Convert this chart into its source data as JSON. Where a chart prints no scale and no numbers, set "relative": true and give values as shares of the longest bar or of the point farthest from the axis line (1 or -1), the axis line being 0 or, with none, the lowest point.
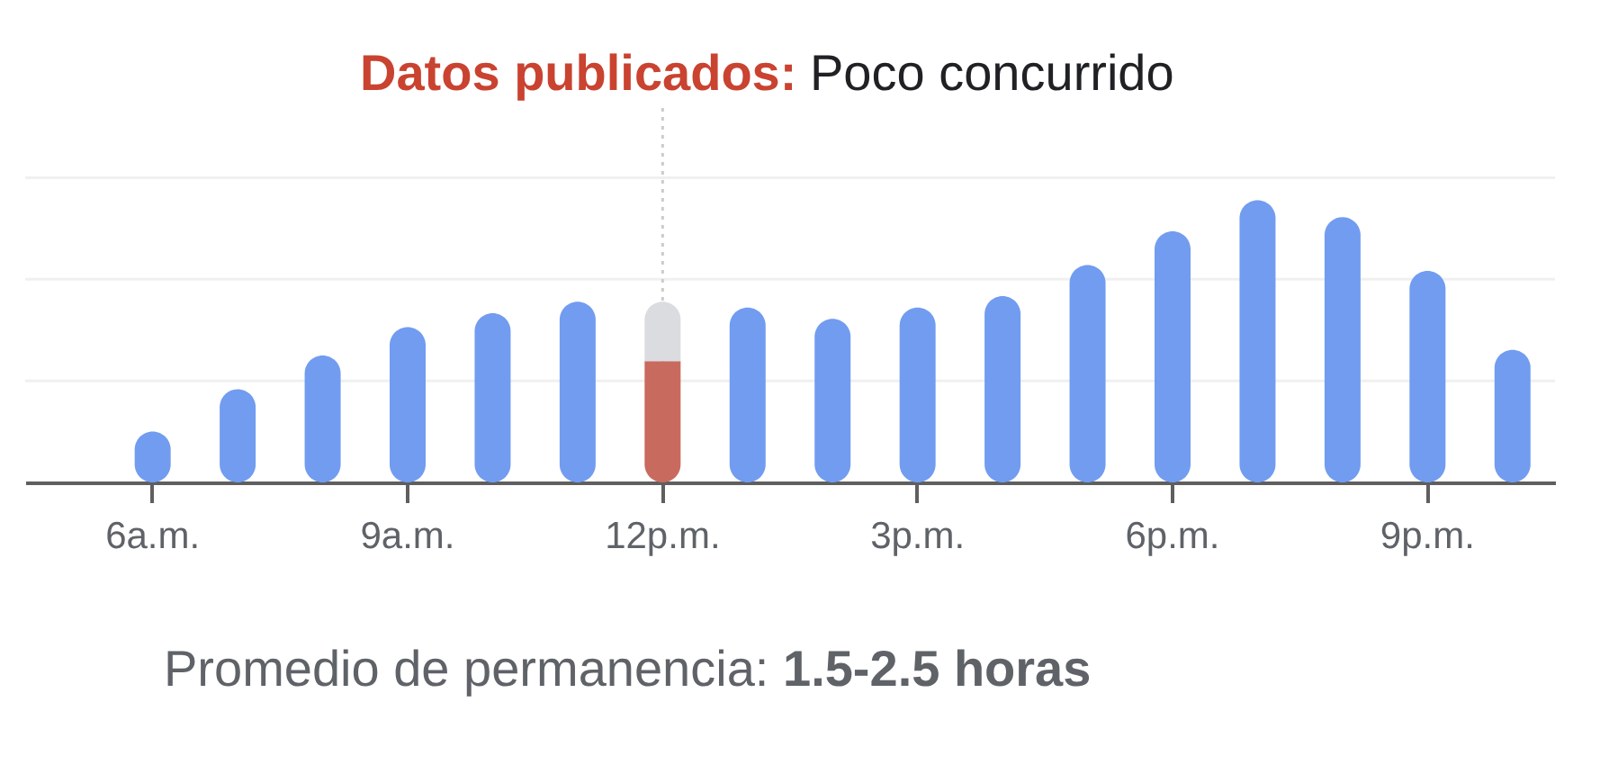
{
  "chart_data": {
    "type": "bar",
    "relative": true,
    "stacked": true,
    "annotations": [
      "Datos publicados:",
      "Poco concurrido",
      "Promedio de permanencia:",
      "1.5-2.5 horas"
    ],
    "categories": [
      "6a.m.",
      null,
      null,
      "9a.m.",
      null,
      null,
      "12p.m.",
      null,
      null,
      "3p.m.",
      null,
      null,
      "6p.m.",
      null,
      null,
      "9p.m.",
      null
    ],
    "series": [
      {
        "color": "#c96a5f",
        "values": [
          null,
          null,
          null,
          null,
          null,
          null,
          0.43,
          null,
          null,
          null,
          null,
          null,
          null,
          null,
          null,
          null,
          null
        ]
      },
      {
        "color": "#dadce0",
        "values": [
          null,
          null,
          null,
          null,
          null,
          null,
          0.21,
          null,
          null,
          null,
          null,
          null,
          null,
          null,
          null,
          null,
          null
        ]
      },
      {
        "color": "#719cf0",
        "values": [
          0.18,
          0.33,
          0.45,
          0.55,
          0.6,
          0.64,
          null,
          0.62,
          0.58,
          0.62,
          0.66,
          0.77,
          0.89,
          1,
          0.94,
          0.75,
          0.47
        ]
      }
    ],
    "ref_lines": [
      {
        "axis": "y",
        "value": 0.36,
        "color": "#f0f0f0"
      },
      {
        "axis": "y",
        "value": 0.72,
        "color": "#f0f0f0"
      },
      {
        "axis": "y",
        "value": 1.08,
        "color": "#f0f0f0"
      },
      {
        "axis": "x",
        "value": "12p.m.",
        "color": "#cccccc",
        "line_style": "dotted"
      }
    ]
  }
}
